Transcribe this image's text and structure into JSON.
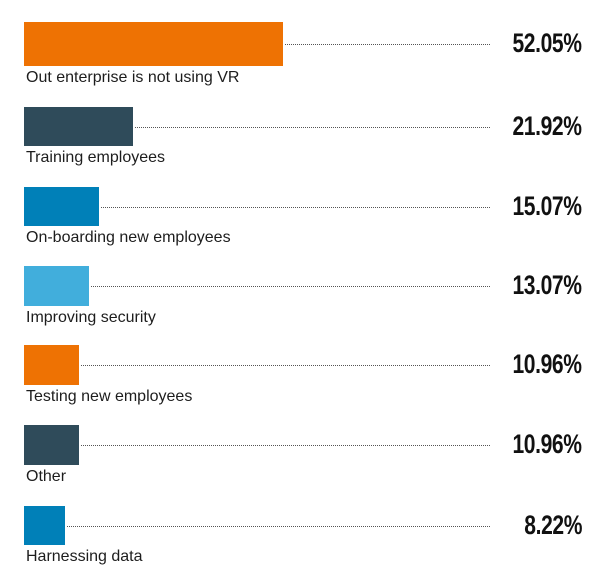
{
  "chart_data": {
    "type": "bar",
    "orientation": "horizontal",
    "title": "",
    "xlabel": "",
    "ylabel": "",
    "xlim": [
      0,
      100
    ],
    "grid": false,
    "categories": [
      "Out enterprise is not using VR",
      "Training employees",
      "On-boarding new employees",
      "Improving security",
      "Testing new employees",
      "Other",
      "Harnessing data"
    ],
    "values": [
      52.05,
      21.92,
      15.07,
      13.07,
      10.96,
      10.96,
      8.22
    ],
    "value_labels": [
      "52.05%",
      "21.92%",
      "15.07%",
      "13.07%",
      "10.96%",
      "10.96%",
      "8.22%"
    ],
    "colors": [
      "#EE7203",
      "#2F4B5A",
      "#0080B8",
      "#41AEDC",
      "#EE7203",
      "#2F4B5A",
      "#0080B8"
    ]
  }
}
